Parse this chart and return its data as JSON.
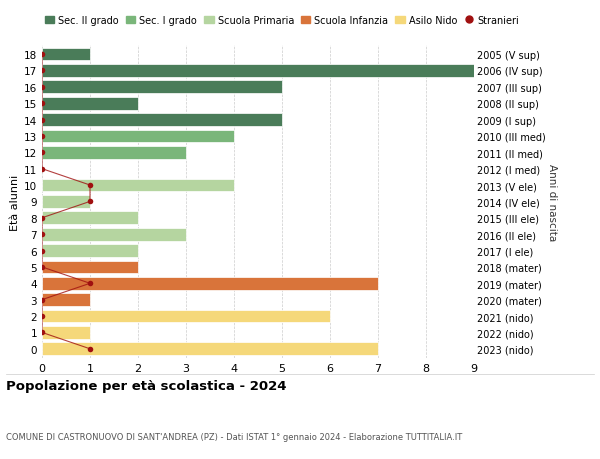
{
  "ages": [
    18,
    17,
    16,
    15,
    14,
    13,
    12,
    11,
    10,
    9,
    8,
    7,
    6,
    5,
    4,
    3,
    2,
    1,
    0
  ],
  "right_labels": [
    "2005 (V sup)",
    "2006 (IV sup)",
    "2007 (III sup)",
    "2008 (II sup)",
    "2009 (I sup)",
    "2010 (III med)",
    "2011 (II med)",
    "2012 (I med)",
    "2013 (V ele)",
    "2014 (IV ele)",
    "2015 (III ele)",
    "2016 (II ele)",
    "2017 (I ele)",
    "2018 (mater)",
    "2019 (mater)",
    "2020 (mater)",
    "2021 (nido)",
    "2022 (nido)",
    "2023 (nido)"
  ],
  "bar_values": [
    1,
    9,
    5,
    2,
    5,
    4,
    3,
    0,
    4,
    1,
    2,
    3,
    2,
    2,
    7,
    1,
    6,
    1,
    7
  ],
  "bar_colors": [
    "#4a7c59",
    "#4a7c59",
    "#4a7c59",
    "#4a7c59",
    "#4a7c59",
    "#7ab67a",
    "#7ab67a",
    "#7ab67a",
    "#b5d5a0",
    "#b5d5a0",
    "#b5d5a0",
    "#b5d5a0",
    "#b5d5a0",
    "#d9743a",
    "#d9743a",
    "#d9743a",
    "#f5d87a",
    "#f5d87a",
    "#f5d87a"
  ],
  "stranieri_values": [
    0,
    0,
    0,
    0,
    0,
    0,
    0,
    0,
    1,
    1,
    0,
    0,
    0,
    0,
    1,
    0,
    0,
    0,
    1
  ],
  "color_sec2": "#4a7c59",
  "color_sec1": "#7ab67a",
  "color_primaria": "#b5d5a0",
  "color_infanzia": "#d9743a",
  "color_nido": "#f5d87a",
  "color_stranieri": "#a01010",
  "title": "Popolazione per età scolastica - 2024",
  "subtitle": "COMUNE DI CASTRONUOVO DI SANT'ANDREA (PZ) - Dati ISTAT 1° gennaio 2024 - Elaborazione TUTTITALIA.IT",
  "ylabel_left": "Età alunni",
  "ylabel_right": "Anni di nascita",
  "xlim": [
    0,
    9
  ],
  "xticks": [
    0,
    1,
    2,
    3,
    4,
    5,
    6,
    7,
    8,
    9
  ],
  "bg_color": "#ffffff",
  "grid_color": "#cccccc",
  "bar_height": 0.78
}
